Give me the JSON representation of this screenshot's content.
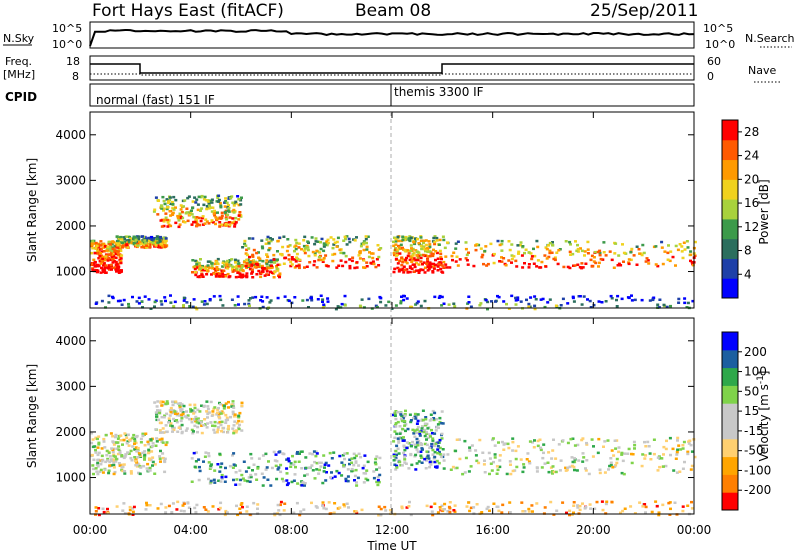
{
  "header": {
    "radar": "Fort Hays East (fitACF)",
    "beam": "Beam 08",
    "date": "25/Sep/2011"
  },
  "top_panels": {
    "nsky_label": "N.Sky",
    "nsearch_label": "N.Search",
    "nsky_ticks": [
      "10^5",
      "10^0"
    ],
    "nsearch_ticks": [
      "10^5",
      "10^0"
    ],
    "freq_label_1": "Freq.",
    "freq_label_2": "[MHz]",
    "freq_ticks": [
      "18",
      "8"
    ],
    "nave_label": "Nave",
    "nave_ticks": [
      "60",
      "0"
    ],
    "cpid_label": "CPID",
    "cpid_segments": [
      "normal (fast) 151 IF",
      "themis 3300 IF"
    ]
  },
  "colors": {
    "power_scale": [
      "#0000ff",
      "#1e40a8",
      "#2b6e5e",
      "#3c9a4a",
      "#a8d23c",
      "#f0d21e",
      "#ff9a00",
      "#ff5a00",
      "#ff0000"
    ],
    "velocity_scale": [
      "#ff0000",
      "#ff7f00",
      "#ffa500",
      "#ffd070",
      "#c8c8c8",
      "#c8c8c8",
      "#7fd34a",
      "#2ea84a",
      "#1c5fa0",
      "#0000ff"
    ]
  },
  "chart_data": [
    {
      "type": "heatmap",
      "name_hint": "power",
      "ylabel": "Slant Range [km]",
      "y_ticks": [
        "1000",
        "2000",
        "3000",
        "4000"
      ],
      "ylim": [
        200,
        4500
      ],
      "xlim": [
        0,
        24
      ],
      "colorbar_label": "Power [dB]",
      "colorbar_ticks": [
        "4",
        "8",
        "12",
        "16",
        "20",
        "24",
        "28"
      ],
      "colorbar_range": [
        0,
        30
      ],
      "bands": [
        {
          "t0": 0.0,
          "t1": 1.2,
          "r0": 1000,
          "r1": 1700,
          "level": 0.85
        },
        {
          "t0": 1.0,
          "t1": 3.0,
          "r0": 1550,
          "r1": 1800,
          "level": 0.55
        },
        {
          "t0": 2.5,
          "t1": 6.0,
          "r0": 2000,
          "r1": 2700,
          "level": 0.6
        },
        {
          "t0": 4.0,
          "t1": 7.5,
          "r0": 900,
          "r1": 1300,
          "level": 0.7
        },
        {
          "t0": 6.0,
          "t1": 11.5,
          "r0": 1100,
          "r1": 1800,
          "level": 0.65
        },
        {
          "t0": 12.0,
          "t1": 14.0,
          "r0": 1000,
          "r1": 1800,
          "level": 0.75
        },
        {
          "t0": 14.0,
          "t1": 24.0,
          "r0": 1100,
          "r1": 1700,
          "level": 0.7
        },
        {
          "t0": 0.0,
          "t1": 24.0,
          "r0": 200,
          "r1": 500,
          "level": 0.2
        }
      ]
    },
    {
      "type": "heatmap",
      "name_hint": "velocity",
      "xlabel": "Time UT",
      "x_ticks": [
        "00:00",
        "04:00",
        "08:00",
        "12:00",
        "16:00",
        "20:00",
        "00:00"
      ],
      "ylabel": "Slant Range [km]",
      "y_ticks": [
        "1000",
        "2000",
        "3000",
        "4000"
      ],
      "ylim": [
        200,
        4500
      ],
      "xlim": [
        0,
        24
      ],
      "colorbar_label": "Velocity [m s^-1]",
      "colorbar_ticks": [
        "200",
        "100",
        "50",
        "15",
        "-15",
        "-50",
        "-100",
        "-200"
      ],
      "colorbar_range": [
        -250,
        250
      ],
      "bands": [
        {
          "t0": 0.0,
          "t1": 3.0,
          "r0": 1100,
          "r1": 2000,
          "level": 0.5
        },
        {
          "t0": 2.5,
          "t1": 6.0,
          "r0": 2000,
          "r1": 2700,
          "level": 0.5
        },
        {
          "t0": 4.0,
          "t1": 11.5,
          "r0": 850,
          "r1": 1600,
          "level": 0.7
        },
        {
          "t0": 12.0,
          "t1": 14.0,
          "r0": 1200,
          "r1": 2500,
          "level": 0.7
        },
        {
          "t0": 14.0,
          "t1": 24.0,
          "r0": 1100,
          "r1": 1900,
          "level": 0.5
        },
        {
          "t0": 0.0,
          "t1": 24.0,
          "r0": 200,
          "r1": 500,
          "level": 0.3
        }
      ]
    }
  ]
}
